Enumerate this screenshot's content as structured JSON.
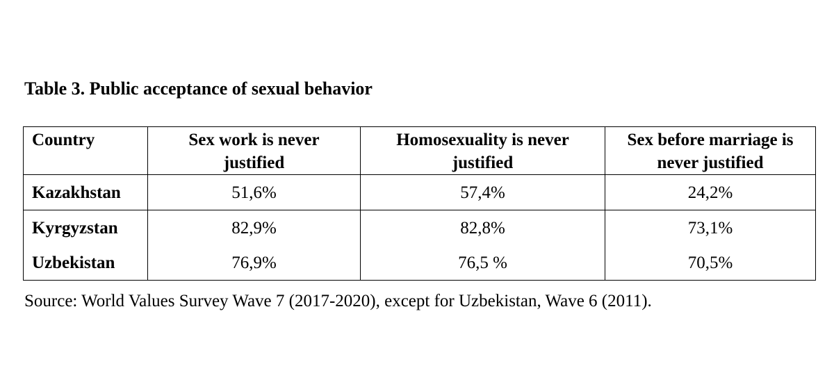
{
  "title": "Table 3. Public acceptance of sexual behavior",
  "table": {
    "header": [
      "Country",
      "Sex work is never justified",
      "Homosexuality is never justified",
      "Sex before marriage is never justified"
    ],
    "rows": [
      [
        "Kazakhstan",
        "51,6%",
        "57,4%",
        "24,2%"
      ],
      [
        "Kyrgyzstan",
        "82,9%",
        "82,8%",
        "73,1%"
      ],
      [
        "Uzbekistan",
        "76,9%",
        "76,5 %",
        "70,5%"
      ]
    ]
  },
  "source": "Source: World Values Survey Wave 7 (2017-2020), except for Uzbekistan, Wave 6 (2011)."
}
